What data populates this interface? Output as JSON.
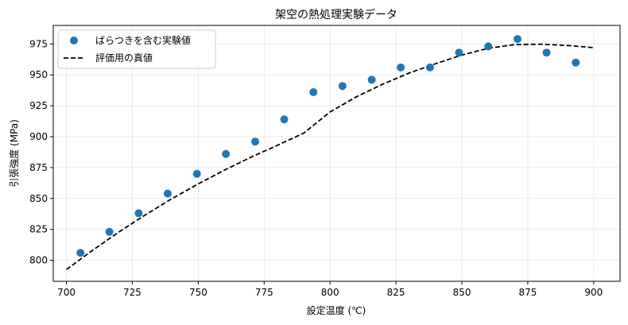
{
  "chart_data": {
    "type": "scatter",
    "title": "架空の熱処理実験データ",
    "xlabel": "設定温度 (℃)",
    "ylabel": "引張強度 (MPa)",
    "xlim": [
      695,
      910
    ],
    "ylim": [
      783,
      990
    ],
    "xticks": [
      700,
      725,
      750,
      775,
      800,
      825,
      850,
      875,
      900
    ],
    "yticks": [
      800,
      825,
      850,
      875,
      900,
      925,
      950,
      975
    ],
    "grid": true,
    "legend_position": "top-left",
    "colors": {
      "points": "#1f77b4",
      "curve": "#000000",
      "grid": "#e6e6e6"
    },
    "series": [
      {
        "name": "ばらつきを含む実験値",
        "kind": "scatter",
        "x": [
          705.3,
          716.3,
          727.4,
          738.4,
          749.5,
          760.5,
          771.6,
          782.6,
          793.7,
          804.7,
          815.8,
          826.8,
          837.9,
          848.9,
          860.0,
          871.1,
          882.1,
          893.2
        ],
        "y": [
          806,
          823,
          838,
          854,
          870,
          886,
          896,
          914,
          936,
          941,
          946,
          956,
          956,
          968,
          973,
          979,
          968,
          960
        ]
      },
      {
        "name": "評価用の真値",
        "kind": "line",
        "style": "dashed",
        "x": [
          700,
          710,
          720,
          730,
          740,
          750,
          760,
          770,
          780,
          790,
          800,
          810,
          820,
          830,
          840,
          850,
          860,
          870,
          880,
          890,
          900
        ],
        "y": [
          792.5,
          808.2,
          823.0,
          836.9,
          849.8,
          861.8,
          873.0,
          883.4,
          893.0,
          902.8,
          920.0,
          932.3,
          942.5,
          951.5,
          959.0,
          966.0,
          971.5,
          974.5,
          974.8,
          973.8,
          972.0
        ]
      }
    ]
  }
}
